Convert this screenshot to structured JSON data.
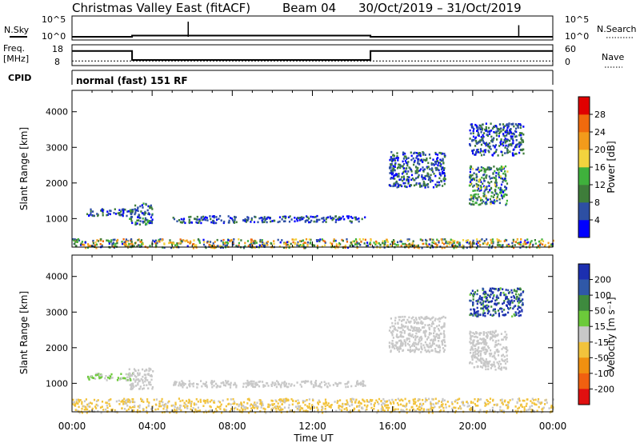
{
  "header": {
    "station": "Christmas Valley East (fitACF)",
    "beam": "Beam 04",
    "date_range": "30/Oct/2019 – 31/Oct/2019"
  },
  "panels": {
    "nsky": {
      "label": "N.Sky",
      "ticks": [
        "10^5",
        "10^0"
      ]
    },
    "nsearch": {
      "label": "N.Search"
    },
    "freq": {
      "label_line1": "Freq.",
      "label_line2": "[MHz]",
      "ticks": [
        "18",
        "8"
      ]
    },
    "nave": {
      "label": "Nave",
      "ticks": [
        "60",
        "0"
      ]
    },
    "cpid": {
      "label": "CPID",
      "value": "normal (fast) 151 RF"
    }
  },
  "colors": {
    "power_scale": [
      "#0000ff",
      "#2d4fa3",
      "#3e7d3a",
      "#3fb13c",
      "#f2d33e",
      "#f39b1b",
      "#f06a0d",
      "#e00000"
    ],
    "velocity_scale": [
      "#1c2fb0",
      "#2f58a8",
      "#3e8a3e",
      "#6cca3a",
      "#c8c8c8",
      "#f2c33c",
      "#f09010",
      "#f06010",
      "#e01010"
    ]
  },
  "chart_data": [
    {
      "type": "heatmap",
      "title": "",
      "quantity": "Power",
      "xlabel": "",
      "ylabel": "Slant Range [km]",
      "xlim_hours": [
        0,
        24
      ],
      "ylim": [
        200,
        4600
      ],
      "x_ticks": [
        "00:00",
        "04:00",
        "08:00",
        "12:00",
        "16:00",
        "20:00",
        "00:00"
      ],
      "y_ticks": [
        1000,
        2000,
        3000,
        4000
      ],
      "colorbar": {
        "label": "Power [dB]",
        "ticks": [
          4,
          8,
          12,
          16,
          20,
          24,
          28
        ],
        "range": [
          0,
          30
        ]
      },
      "echo_regions": [
        {
          "t_start": 0.0,
          "t_end": 24.0,
          "r_min": 200,
          "r_max": 450,
          "mean_value": 14
        },
        {
          "t_start": 0.7,
          "t_end": 3.0,
          "r_min": 1100,
          "r_max": 1300,
          "mean_value": 6
        },
        {
          "t_start": 2.8,
          "t_end": 4.0,
          "r_min": 850,
          "r_max": 1450,
          "mean_value": 7
        },
        {
          "t_start": 5.0,
          "t_end": 8.2,
          "r_min": 900,
          "r_max": 1100,
          "mean_value": 6
        },
        {
          "t_start": 8.5,
          "t_end": 14.6,
          "r_min": 920,
          "r_max": 1100,
          "mean_value": 5
        },
        {
          "t_start": 19.8,
          "t_end": 22.5,
          "r_min": 2800,
          "r_max": 3700,
          "mean_value": 6
        },
        {
          "t_start": 19.8,
          "t_end": 21.7,
          "r_min": 1400,
          "r_max": 2500,
          "mean_value": 9
        },
        {
          "t_start": 15.8,
          "t_end": 18.6,
          "r_min": 1900,
          "r_max": 2900,
          "mean_value": 6
        }
      ]
    },
    {
      "type": "heatmap",
      "title": "",
      "quantity": "Velocity",
      "xlabel": "Time UT",
      "ylabel": "Slant Range [km]",
      "xlim_hours": [
        0,
        24
      ],
      "ylim": [
        200,
        4600
      ],
      "x_ticks": [
        "00:00",
        "04:00",
        "08:00",
        "12:00",
        "16:00",
        "20:00",
        "00:00"
      ],
      "y_ticks": [
        1000,
        2000,
        3000,
        4000
      ],
      "colorbar": {
        "label": "Velocity [m s⁻¹]",
        "ticks": [
          200,
          100,
          50,
          15,
          -15,
          -50,
          -100,
          -200
        ],
        "range": [
          -250,
          250
        ]
      },
      "echo_regions": [
        {
          "t_start": 0.0,
          "t_end": 24.0,
          "r_min": 200,
          "r_max": 600,
          "mean_value": -40
        },
        {
          "t_start": 0.7,
          "t_end": 3.0,
          "r_min": 1100,
          "r_max": 1300,
          "mean_value": 30
        },
        {
          "t_start": 2.8,
          "t_end": 4.0,
          "r_min": 850,
          "r_max": 1450,
          "mean_value": 5
        },
        {
          "t_start": 5.0,
          "t_end": 8.2,
          "r_min": 900,
          "r_max": 1100,
          "mean_value": 10
        },
        {
          "t_start": 8.5,
          "t_end": 14.6,
          "r_min": 920,
          "r_max": 1100,
          "mean_value": 0
        },
        {
          "t_start": 19.8,
          "t_end": 22.5,
          "r_min": 2900,
          "r_max": 3700,
          "mean_value": 220
        },
        {
          "t_start": 19.8,
          "t_end": 21.7,
          "r_min": 1400,
          "r_max": 2500,
          "mean_value": 0
        },
        {
          "t_start": 15.8,
          "t_end": 18.6,
          "r_min": 1900,
          "r_max": 2900,
          "mean_value": 0
        }
      ]
    }
  ],
  "series_meta": {
    "nsky_baseline": [
      {
        "t": 0.0,
        "v": 0.25
      },
      {
        "t": 3.0,
        "v": 0.25
      },
      {
        "t": 3.0,
        "v": 0.45
      },
      {
        "t": 14.9,
        "v": 0.45
      },
      {
        "t": 14.9,
        "v": 0.25
      },
      {
        "t": 24.0,
        "v": 0.25
      }
    ],
    "nsky_spikes": [
      {
        "t": 5.8,
        "v": 0.95
      },
      {
        "t": 22.3,
        "v": 0.75
      }
    ],
    "freq_step": [
      {
        "t": 0.0,
        "v": 15.2
      },
      {
        "t": 3.0,
        "v": 15.2
      },
      {
        "t": 3.0,
        "v": 10.5
      },
      {
        "t": 14.9,
        "v": 10.5
      },
      {
        "t": 14.9,
        "v": 15.2
      },
      {
        "t": 24.0,
        "v": 15.2
      }
    ],
    "nave_level": 12
  },
  "footer": {
    "xlabel": "Time UT"
  }
}
